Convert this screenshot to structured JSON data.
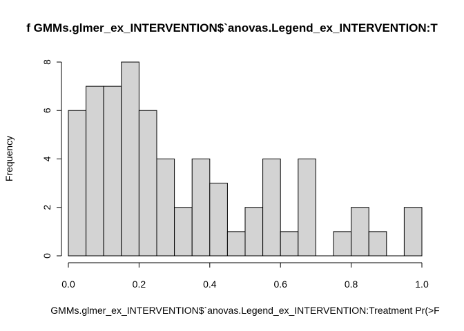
{
  "chart_data": {
    "type": "bar",
    "title": "f GMMs.glmer_ex_INTERVENTION$`anovas.Legend_ex_INTERVENTION:T",
    "xlabel": "GMMs.glmer_ex_INTERVENTION$`anovas.Legend_ex_INTERVENTION:Treatment Pr(>F",
    "ylabel": "Frequency",
    "bin_width": 0.05,
    "bins_start": [
      0.0,
      0.05,
      0.1,
      0.15,
      0.2,
      0.25,
      0.3,
      0.35,
      0.4,
      0.45,
      0.5,
      0.55,
      0.6,
      0.65,
      0.7,
      0.75,
      0.8,
      0.85,
      0.9,
      0.95
    ],
    "values": [
      6,
      7,
      7,
      8,
      6,
      4,
      2,
      4,
      3,
      1,
      2,
      4,
      1,
      4,
      0,
      1,
      2,
      1,
      0,
      2
    ],
    "xlim": [
      0,
      1
    ],
    "ylim": [
      0,
      8
    ],
    "x_ticks": [
      "0.0",
      "0.2",
      "0.4",
      "0.6",
      "0.8",
      "1.0"
    ],
    "y_ticks": [
      "0",
      "2",
      "4",
      "6",
      "8"
    ],
    "bar_fill": "#d3d3d3",
    "bar_stroke": "#000000",
    "grid": false
  }
}
